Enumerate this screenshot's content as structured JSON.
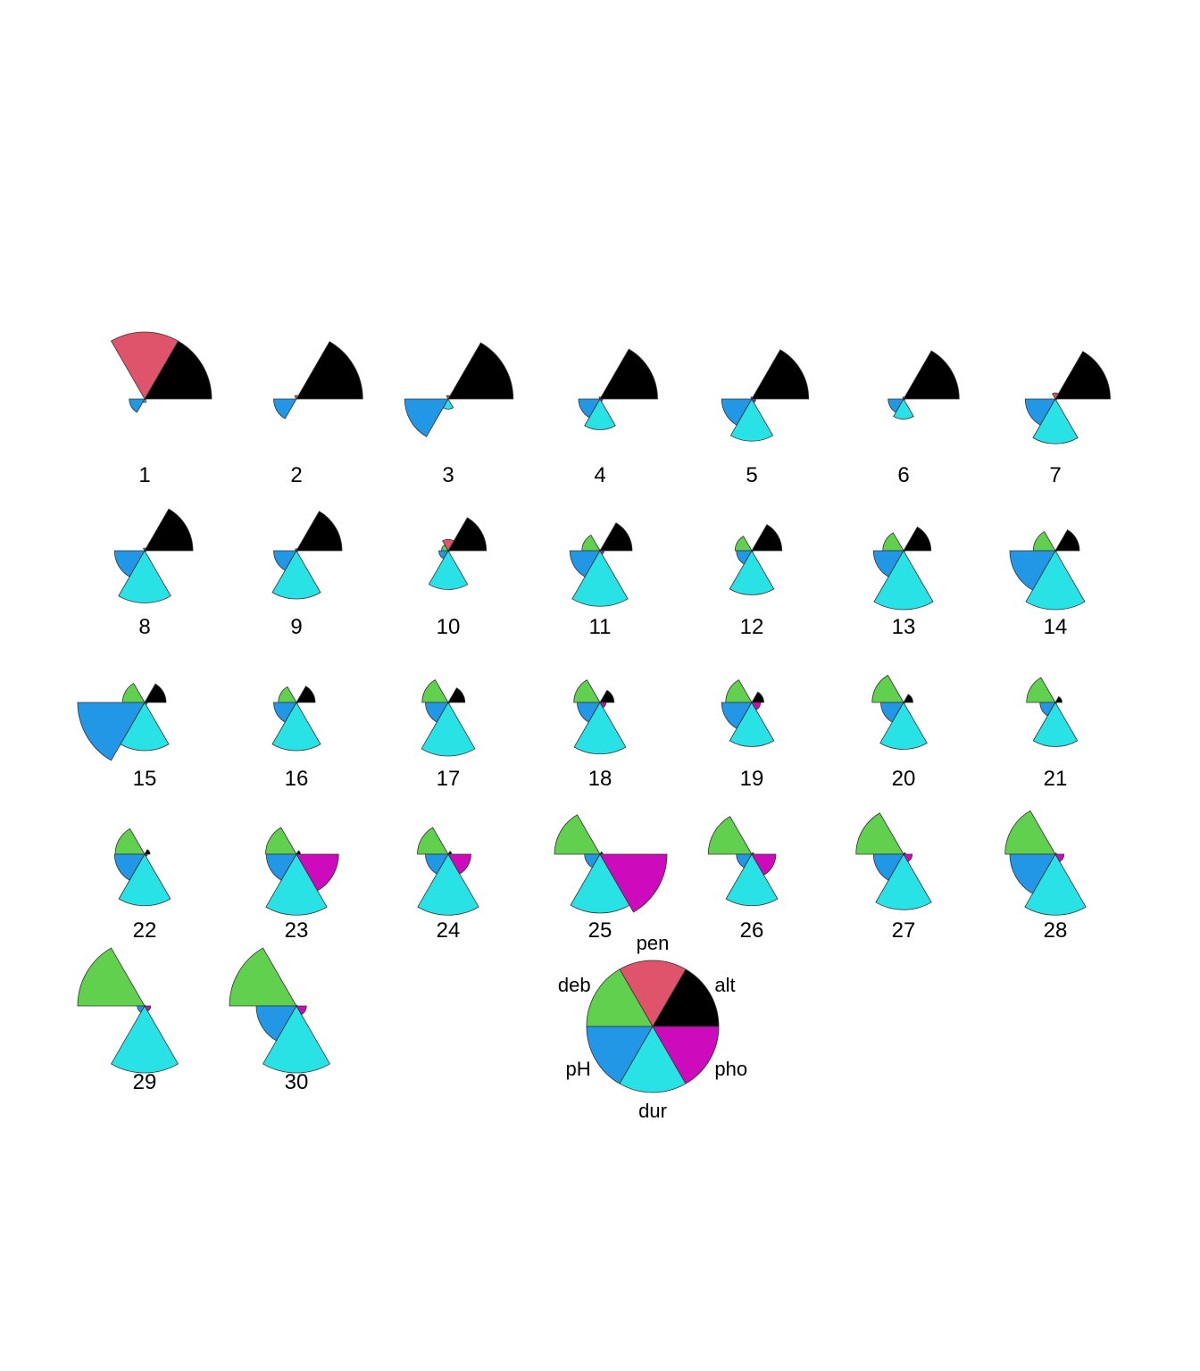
{
  "chart_data": {
    "type": "segment-star",
    "variables": [
      "alt",
      "pen",
      "deb",
      "pH",
      "dur",
      "pho"
    ],
    "variable_colors": {
      "alt": "#000000",
      "pen": "#DF536B",
      "deb": "#61D04F",
      "pH": "#2297E6",
      "dur": "#28E2E5",
      "pho": "#CD0BBC"
    },
    "key": {
      "labels": [
        "alt",
        "pen",
        "deb",
        "pH",
        "dur",
        "pho"
      ]
    },
    "stars": [
      {
        "label": "1",
        "values": {
          "alt": 1.0,
          "pen": 1.0,
          "deb": 0.0,
          "pH": 0.23,
          "dur": 0.05,
          "pho": 0.02
        }
      },
      {
        "label": "2",
        "values": {
          "alt": 0.99,
          "pen": 0.05,
          "deb": 0.0,
          "pH": 0.34,
          "dur": 0.0,
          "pho": 0.0
        }
      },
      {
        "label": "3",
        "values": {
          "alt": 0.97,
          "pen": 0.05,
          "deb": 0.0,
          "pH": 0.65,
          "dur": 0.15,
          "pho": 0.0
        }
      },
      {
        "label": "4",
        "values": {
          "alt": 0.86,
          "pen": 0.03,
          "deb": 0.01,
          "pH": 0.32,
          "dur": 0.46,
          "pho": 0.04
        }
      },
      {
        "label": "5",
        "values": {
          "alt": 0.85,
          "pen": 0.03,
          "deb": 0.01,
          "pH": 0.45,
          "dur": 0.63,
          "pho": 0.06
        }
      },
      {
        "label": "6",
        "values": {
          "alt": 0.83,
          "pen": 0.03,
          "deb": 0.01,
          "pH": 0.23,
          "dur": 0.3,
          "pho": 0.02
        }
      },
      {
        "label": "7",
        "values": {
          "alt": 0.82,
          "pen": 0.09,
          "deb": 0.01,
          "pH": 0.45,
          "dur": 0.67,
          "pho": 0.02
        }
      },
      {
        "label": "8",
        "values": {
          "alt": 0.72,
          "pen": 0.04,
          "deb": 0.01,
          "pH": 0.45,
          "dur": 0.78,
          "pho": 0.02
        }
      },
      {
        "label": "9",
        "values": {
          "alt": 0.68,
          "pen": 0.03,
          "deb": 0.02,
          "pH": 0.34,
          "dur": 0.72,
          "pho": 0.02
        }
      },
      {
        "label": "10",
        "values": {
          "alt": 0.57,
          "pen": 0.17,
          "deb": 0.1,
          "pH": 0.14,
          "dur": 0.58,
          "pho": 0.02
        }
      },
      {
        "label": "11",
        "values": {
          "alt": 0.48,
          "pen": 0.02,
          "deb": 0.27,
          "pH": 0.45,
          "dur": 0.83,
          "pho": 0.06
        }
      },
      {
        "label": "12",
        "values": {
          "alt": 0.45,
          "pen": 0.01,
          "deb": 0.25,
          "pH": 0.23,
          "dur": 0.66,
          "pho": 0.02
        }
      },
      {
        "label": "13",
        "values": {
          "alt": 0.41,
          "pen": 0.01,
          "deb": 0.31,
          "pH": 0.45,
          "dur": 0.88,
          "pho": 0.02
        }
      },
      {
        "label": "14",
        "values": {
          "alt": 0.36,
          "pen": 0.01,
          "deb": 0.33,
          "pH": 0.68,
          "dur": 0.88,
          "pho": 0.02
        }
      },
      {
        "label": "15",
        "values": {
          "alt": 0.32,
          "pen": 0.01,
          "deb": 0.33,
          "pH": 1.0,
          "dur": 0.72,
          "pho": 0.04
        }
      },
      {
        "label": "16",
        "values": {
          "alt": 0.28,
          "pen": 0.01,
          "deb": 0.27,
          "pH": 0.34,
          "dur": 0.72,
          "pho": 0.02
        }
      },
      {
        "label": "17",
        "values": {
          "alt": 0.25,
          "pen": 0.01,
          "deb": 0.39,
          "pH": 0.34,
          "dur": 0.8,
          "pho": 0.02
        }
      },
      {
        "label": "18",
        "values": {
          "alt": 0.21,
          "pen": 0.01,
          "deb": 0.39,
          "pH": 0.34,
          "dur": 0.77,
          "pho": 0.09
        }
      },
      {
        "label": "19",
        "values": {
          "alt": 0.18,
          "pen": 0.01,
          "deb": 0.39,
          "pH": 0.45,
          "dur": 0.66,
          "pho": 0.13
        }
      },
      {
        "label": "20",
        "values": {
          "alt": 0.14,
          "pen": 0.01,
          "deb": 0.47,
          "pH": 0.34,
          "dur": 0.7,
          "pho": 0.02
        }
      },
      {
        "label": "21",
        "values": {
          "alt": 0.1,
          "pen": 0.01,
          "deb": 0.43,
          "pH": 0.23,
          "dur": 0.66,
          "pho": 0.02
        }
      },
      {
        "label": "22",
        "values": {
          "alt": 0.08,
          "pen": 0.01,
          "deb": 0.44,
          "pH": 0.45,
          "dur": 0.77,
          "pho": 0.04
        }
      },
      {
        "label": "23",
        "values": {
          "alt": 0.06,
          "pen": 0.01,
          "deb": 0.46,
          "pH": 0.45,
          "dur": 0.91,
          "pho": 0.63
        }
      },
      {
        "label": "24",
        "values": {
          "alt": 0.05,
          "pen": 0.01,
          "deb": 0.46,
          "pH": 0.34,
          "dur": 0.91,
          "pho": 0.34
        }
      },
      {
        "label": "25",
        "values": {
          "alt": 0.04,
          "pen": 0.01,
          "deb": 0.68,
          "pH": 0.23,
          "dur": 0.88,
          "pho": 1.0
        }
      },
      {
        "label": "26",
        "values": {
          "alt": 0.03,
          "pen": 0.01,
          "deb": 0.65,
          "pH": 0.23,
          "dur": 0.77,
          "pho": 0.36
        }
      },
      {
        "label": "27",
        "values": {
          "alt": 0.03,
          "pen": 0.01,
          "deb": 0.71,
          "pH": 0.45,
          "dur": 0.83,
          "pho": 0.13
        }
      },
      {
        "label": "28",
        "values": {
          "alt": 0.02,
          "pen": 0.01,
          "deb": 0.75,
          "pH": 0.68,
          "dur": 0.91,
          "pho": 0.13
        }
      },
      {
        "label": "29",
        "values": {
          "alt": 0.01,
          "pen": 0.01,
          "deb": 1.0,
          "pH": 0.11,
          "dur": 1.0,
          "pho": 0.09
        }
      },
      {
        "label": "30",
        "values": {
          "alt": 0.01,
          "pen": 0.01,
          "deb": 1.0,
          "pH": 0.6,
          "dur": 1.0,
          "pho": 0.15
        }
      }
    ]
  }
}
